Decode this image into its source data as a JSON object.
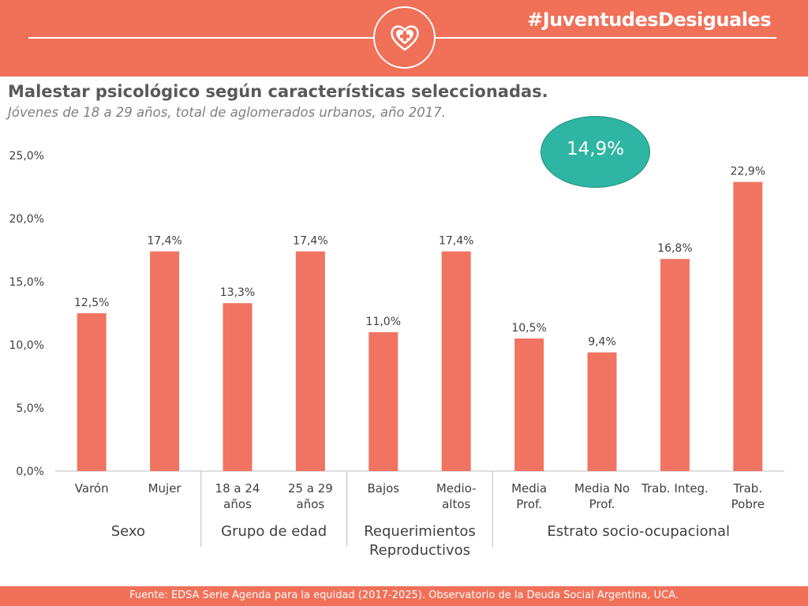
{
  "header": {
    "hashtag": "#JuventudesDesiguales",
    "logo_icon": "heart-cross-icon"
  },
  "title": "Malestar psicológico según características seleccionadas.",
  "subtitle": "Jóvenes de 18 a 29 años, total de aglomerados urbanos, año 2017.",
  "total_callout": "14,9%",
  "footer": "Fuente: EDSA Serie Agenda para la equidad (2017-2025). Observatorio de la Deuda Social Argentina, UCA.",
  "colors": {
    "bar": "#f07461",
    "header": "#f07058",
    "callout": "#2eb5a3"
  },
  "chart_data": {
    "type": "bar",
    "categories": [
      [
        "Varón"
      ],
      [
        "Mujer"
      ],
      [
        "18 a 24",
        "años"
      ],
      [
        "25 a 29",
        "años"
      ],
      [
        "Bajos"
      ],
      [
        "Medio-",
        "altos"
      ],
      [
        "Media",
        "Prof."
      ],
      [
        "Media No",
        "Prof."
      ],
      [
        "Trab. Integ."
      ],
      [
        "Trab.",
        "Pobre"
      ]
    ],
    "values": [
      12.5,
      17.4,
      13.3,
      17.4,
      11.0,
      17.4,
      10.5,
      9.4,
      16.8,
      22.9
    ],
    "data_labels": [
      "12,5%",
      "17,4%",
      "13,3%",
      "17,4%",
      "11,0%",
      "17,4%",
      "10,5%",
      "9,4%",
      "16,8%",
      "22,9%"
    ],
    "groups": [
      {
        "label": [
          "Sexo"
        ],
        "from": 0,
        "to": 1
      },
      {
        "label": [
          "Grupo de edad"
        ],
        "from": 2,
        "to": 3
      },
      {
        "label": [
          "Requerimientos",
          "Reproductivos"
        ],
        "from": 4,
        "to": 5
      },
      {
        "label": [
          "Estrato socio-ocupacional"
        ],
        "from": 6,
        "to": 9
      }
    ],
    "ylim": [
      0,
      25
    ],
    "yticks": [
      0,
      5,
      10,
      15,
      20,
      25
    ],
    "ytick_labels": [
      "0,0%",
      "5,0%",
      "10,0%",
      "15,0%",
      "20,0%",
      "25,0%"
    ],
    "grid": false,
    "legend": "none"
  }
}
